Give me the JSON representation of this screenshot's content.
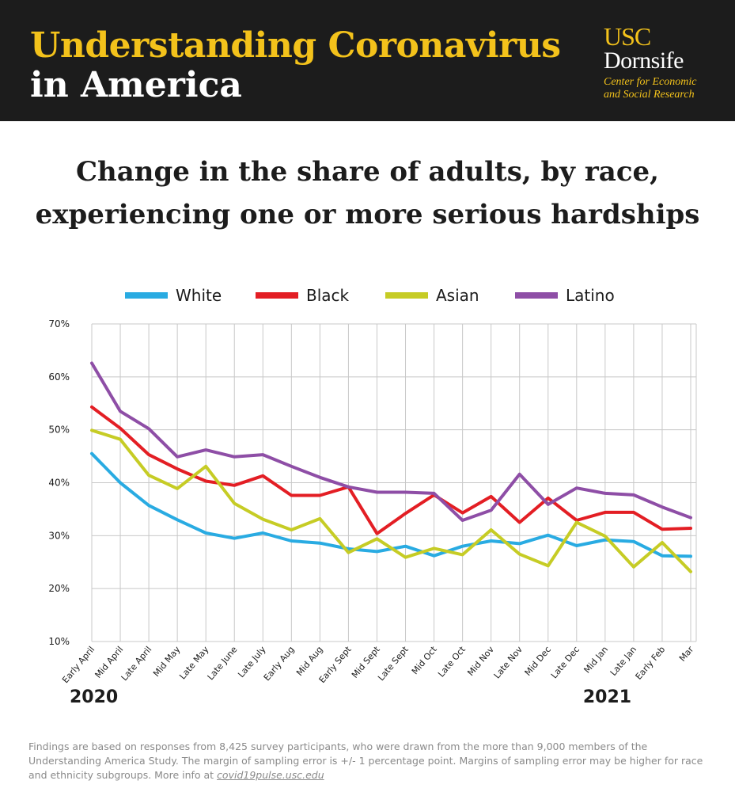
{
  "header": {
    "title_line1": "Understanding Coronavirus",
    "title_line2": "in America",
    "logo": {
      "line1": "USC",
      "line2": "Dornsife",
      "sub1": "Center for Economic",
      "sub2": "and Social Research"
    },
    "accent_color": "#f3c21b",
    "background_color": "#1c1c1c"
  },
  "footnote": {
    "text": "Findings are based on responses from 8,425 survey participants, who were drawn from the more than 9,000 members of the Understanding America Study. The margin of sampling error is +/- 1 percentage point. Margins of sampling error may be higher for race and ethnicity subgroups. More info at ",
    "link": "covid19pulse.usc.edu"
  },
  "chart_data": {
    "type": "line",
    "title_line1": "Change in the share of adults, by race,",
    "title_line2": "experiencing one or more serious hardships",
    "categories": [
      "Early April",
      "Mid April",
      "Late April",
      "Mid May",
      "Late May",
      "Late June",
      "Late July",
      "Early Aug",
      "Mid Aug",
      "Early Sept",
      "Mid Sept",
      "Late Sept",
      "Mid Oct",
      "Late Oct",
      "Mid Nov",
      "Late Nov",
      "Mid Dec",
      "Late Dec",
      "Mid Jan",
      "Late Jan",
      "Early Feb",
      "Mar"
    ],
    "year_labels": [
      {
        "label": "2020",
        "category_index": 0
      },
      {
        "label": "2021",
        "category_index": 18
      }
    ],
    "series": [
      {
        "name": "White",
        "color": "#29abe2",
        "values": [
          45.5,
          40,
          35.7,
          33,
          30.5,
          29.5,
          30.5,
          29,
          28.6,
          27.5,
          27,
          28,
          26.2,
          28,
          29,
          28.5,
          30.1,
          28.1,
          29.2,
          28.9,
          26.2,
          26.1
        ]
      },
      {
        "name": "Black",
        "color": "#e31e24",
        "values": [
          54.3,
          50.3,
          45.3,
          42.6,
          40.3,
          39.5,
          41.3,
          37.6,
          37.6,
          39.2,
          30.4,
          34.2,
          37.7,
          34.3,
          37.4,
          32.5,
          37.1,
          32.9,
          34.4,
          34.4,
          31.2,
          31.4
        ]
      },
      {
        "name": "Asian",
        "color": "#c6cc25",
        "values": [
          49.9,
          48.2,
          41.4,
          38.9,
          43.1,
          36.1,
          33.1,
          31.1,
          33.2,
          26.8,
          29.4,
          25.9,
          27.6,
          26.4,
          31.1,
          26.5,
          24.3,
          32.5,
          29.9,
          24.1,
          28.7,
          23.2
        ]
      },
      {
        "name": "Latino",
        "color": "#8e4ea6",
        "values": [
          62.6,
          53.5,
          50.2,
          44.9,
          46.2,
          44.9,
          45.3,
          43.1,
          41,
          39.2,
          38.2,
          38.2,
          38,
          32.9,
          34.8,
          41.6,
          35.9,
          39,
          38,
          37.7,
          35.4,
          33.4
        ]
      }
    ],
    "y_ticks": [
      "70%",
      "60%",
      "50%",
      "40%",
      "30%",
      "20%",
      "10%"
    ],
    "ylim": [
      10,
      70
    ],
    "grid": true,
    "legend_position": "top"
  }
}
